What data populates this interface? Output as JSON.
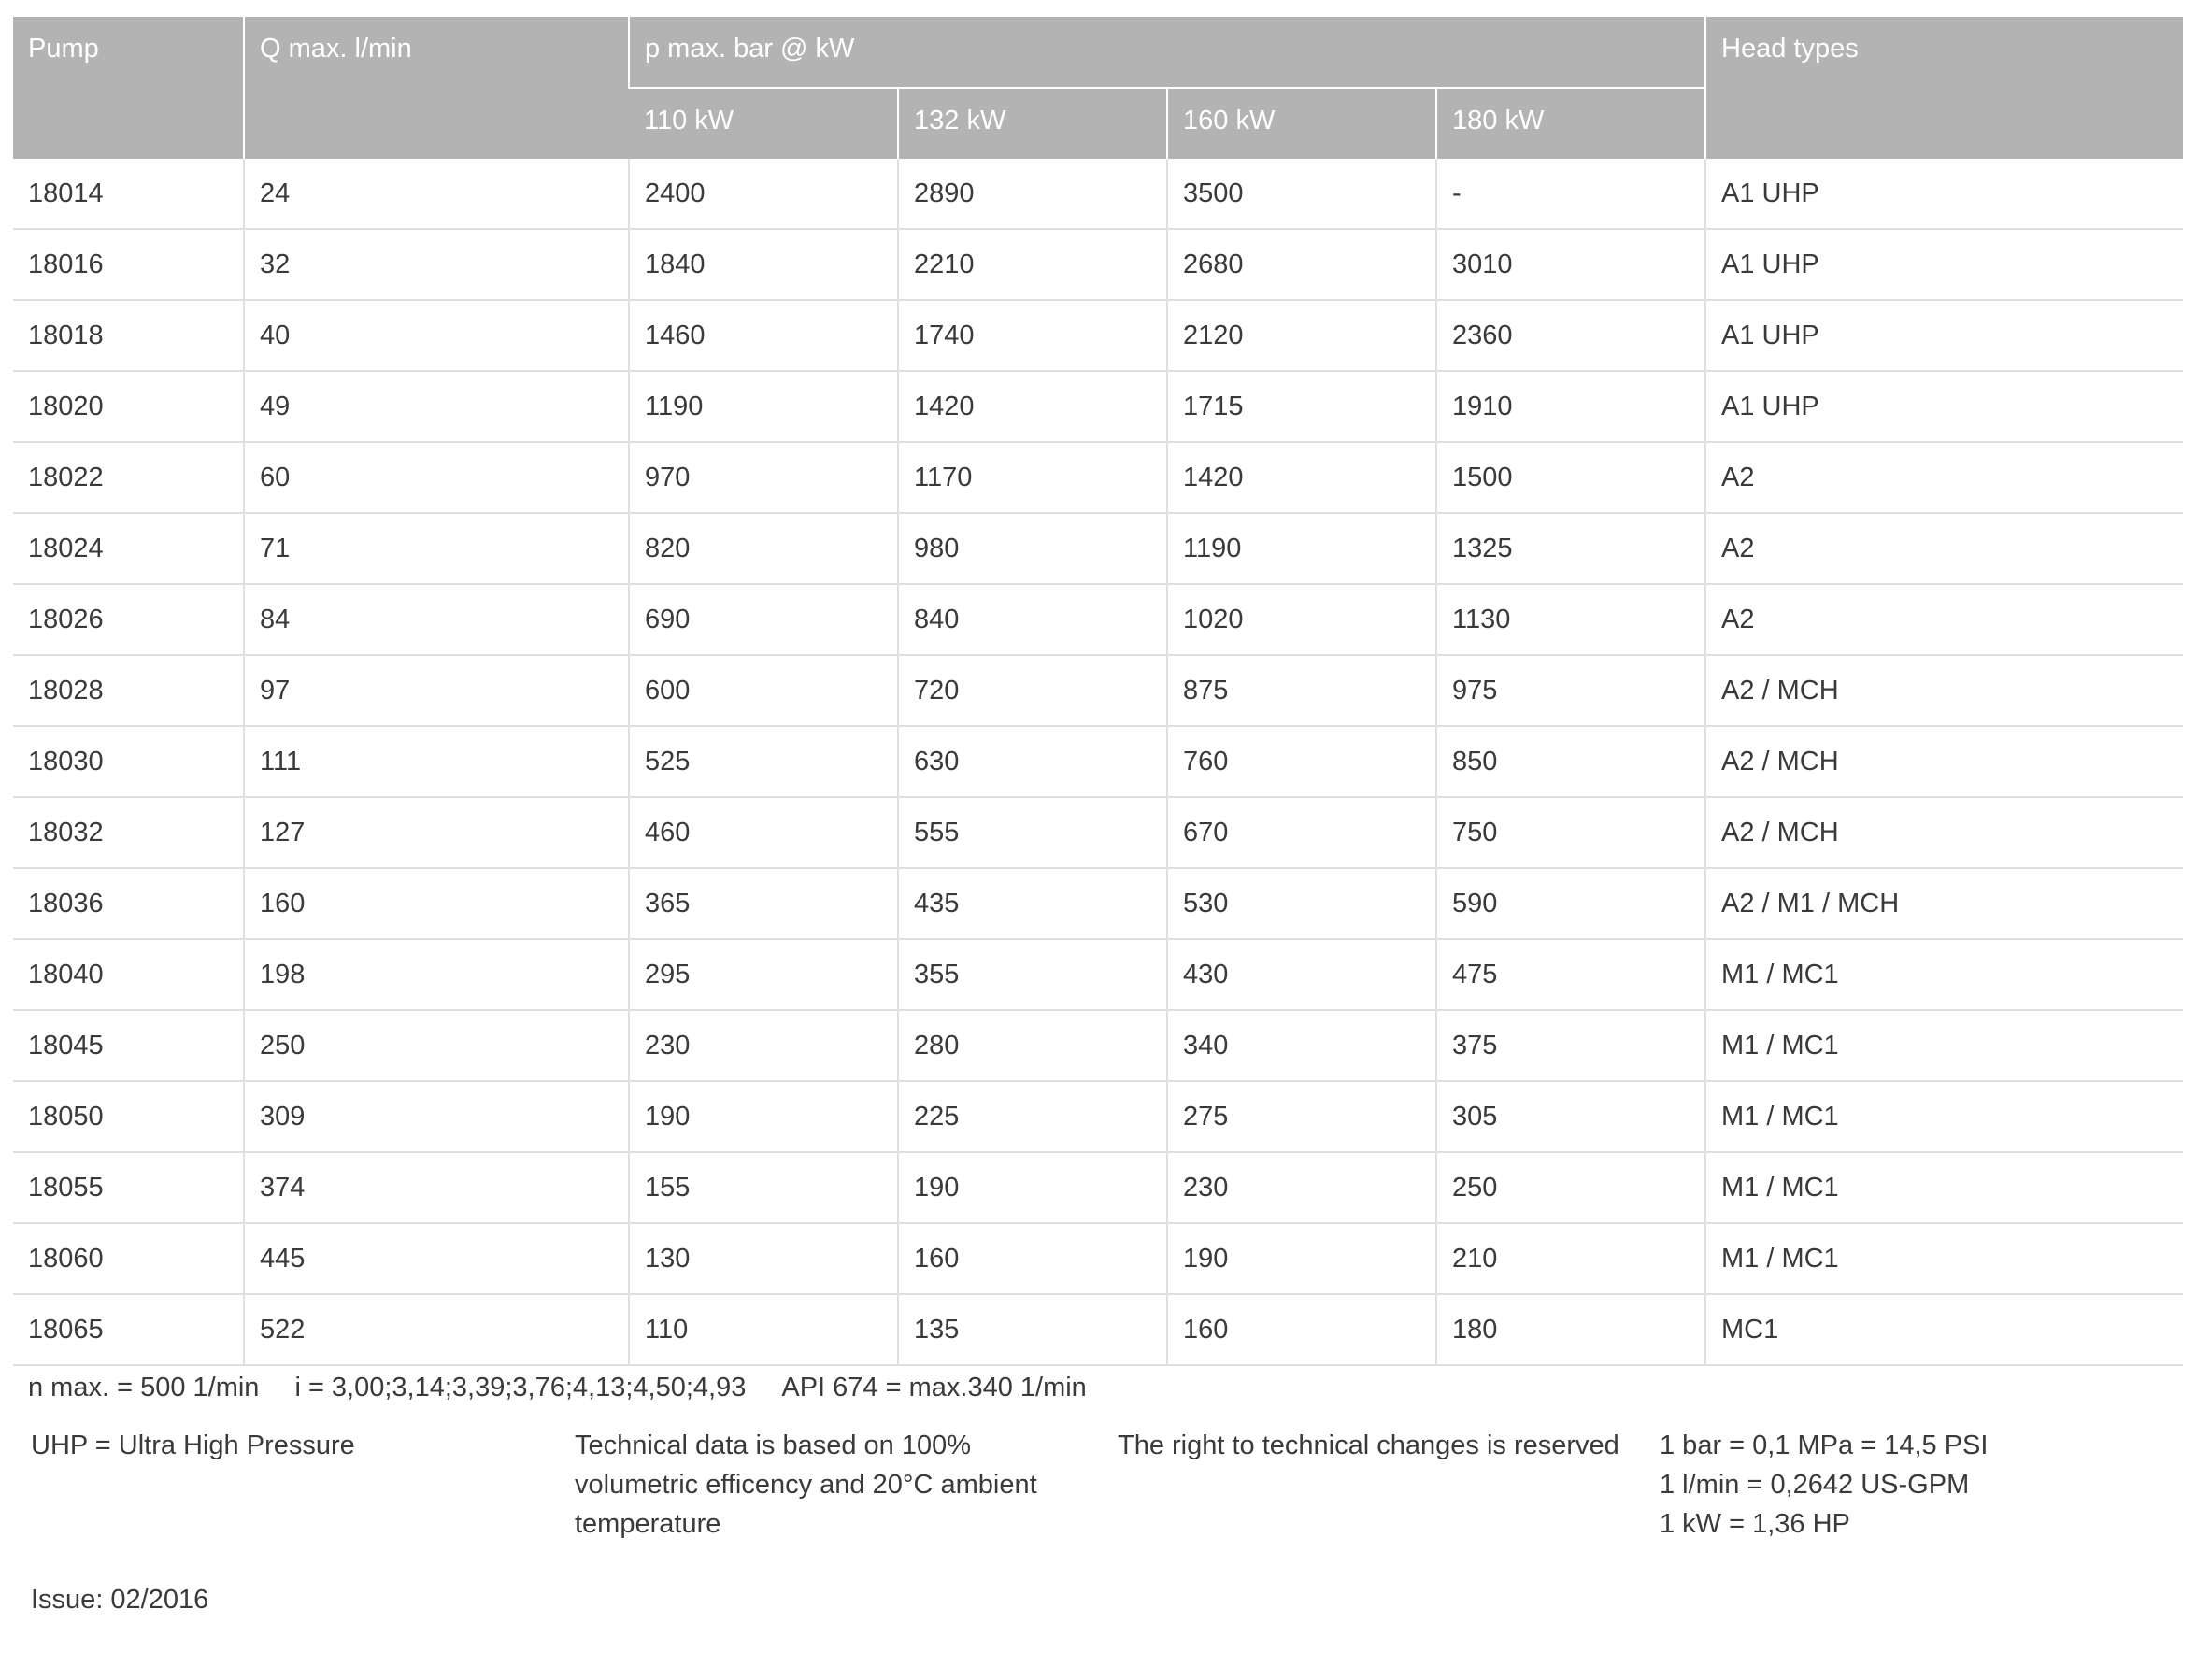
{
  "table": {
    "headers": {
      "pump": "Pump",
      "q_max": "Q max. l/min",
      "p_max": "p max. bar @ kW",
      "power": [
        "110 kW",
        "132 kW",
        "160 kW",
        "180 kW"
      ],
      "head_types": "Head types"
    },
    "rows": [
      [
        "18014",
        "24",
        "2400",
        "2890",
        "3500",
        "-",
        "A1 UHP"
      ],
      [
        "18016",
        "32",
        "1840",
        "2210",
        "2680",
        "3010",
        "A1 UHP"
      ],
      [
        "18018",
        "40",
        "1460",
        "1740",
        "2120",
        "2360",
        "A1 UHP"
      ],
      [
        "18020",
        "49",
        "1190",
        "1420",
        "1715",
        "1910",
        "A1 UHP"
      ],
      [
        "18022",
        "60",
        "970",
        "1170",
        "1420",
        "1500",
        "A2"
      ],
      [
        "18024",
        "71",
        "820",
        "980",
        "1190",
        "1325",
        "A2"
      ],
      [
        "18026",
        "84",
        "690",
        "840",
        "1020",
        "1130",
        "A2"
      ],
      [
        "18028",
        "97",
        "600",
        "720",
        "875",
        "975",
        "A2 / MCH"
      ],
      [
        "18030",
        "111",
        "525",
        "630",
        "760",
        "850",
        "A2 / MCH"
      ],
      [
        "18032",
        "127",
        "460",
        "555",
        "670",
        "750",
        "A2 / MCH"
      ],
      [
        "18036",
        "160",
        "365",
        "435",
        "530",
        "590",
        "A2 / M1 / MCH"
      ],
      [
        "18040",
        "198",
        "295",
        "355",
        "430",
        "475",
        "M1 / MC1"
      ],
      [
        "18045",
        "250",
        "230",
        "280",
        "340",
        "375",
        "M1 / MC1"
      ],
      [
        "18050",
        "309",
        "190",
        "225",
        "275",
        "305",
        "M1 / MC1"
      ],
      [
        "18055",
        "374",
        "155",
        "190",
        "230",
        "250",
        "M1 / MC1"
      ],
      [
        "18060",
        "445",
        "130",
        "160",
        "190",
        "210",
        "M1 / MC1"
      ],
      [
        "18065",
        "522",
        "110",
        "135",
        "160",
        "180",
        "MC1"
      ]
    ]
  },
  "footnotes": {
    "specs": [
      "n max. = 500 1/min",
      "i = 3,00;3,14;3,39;3,76;4,13;4,50;4,93",
      "API 674 = max.340 1/min"
    ],
    "uhp": "UHP = Ultra High Pressure",
    "technical_data": [
      "Technical data is based on 100%",
      "volumetric efficency and 20°C ambient",
      "temperature"
    ],
    "rights": "The right to technical changes is reserved",
    "conversions": [
      "1 bar = 0,1 MPa = 14,5 PSI",
      "1 l/min = 0,2642 US-GPM",
      "1 kW = 1,36 HP"
    ],
    "issue": "Issue: 02/2016"
  }
}
